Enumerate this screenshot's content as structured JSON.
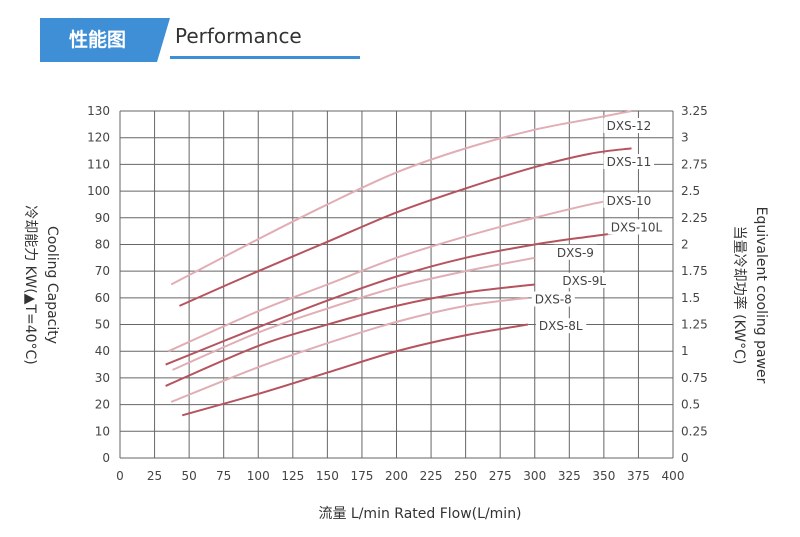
{
  "header": {
    "tag": "性能图",
    "title": "Performance",
    "accent_color": "#3e8fd6"
  },
  "chart_data": {
    "type": "line",
    "title": "",
    "xlabel": "流量 L/min  Rated Flow(L/min)",
    "ylabel": "冷却能力 KW(▲T=40°C)",
    "ylabel2": "Cooling Capacity",
    "y2label": "当量冷却功率 (KW°C)",
    "y2label2": "Equivalent cooling pawer",
    "xlim": [
      0,
      400
    ],
    "ylim": [
      0,
      130
    ],
    "y2lim": [
      0,
      3.25
    ],
    "xticks": [
      "0",
      "25",
      "50",
      "75",
      "100",
      "125",
      "150",
      "175",
      "200",
      "225",
      "250",
      "275",
      "300",
      "325",
      "350",
      "375",
      "400"
    ],
    "yticks": [
      "0",
      "10",
      "20",
      "30",
      "40",
      "50",
      "60",
      "70",
      "80",
      "90",
      "100",
      "110",
      "120",
      "130"
    ],
    "y2ticks": [
      "0",
      "0.25",
      "0.5",
      "0.75",
      "1",
      "1.25",
      "1.5",
      "1.75",
      "2",
      "2.25",
      "2.5",
      "2.75",
      "3",
      "3.25"
    ],
    "grid": true,
    "series": [
      {
        "name": "DXS-12",
        "color": "#e0aeb4",
        "x": [
          37,
          100,
          150,
          200,
          250,
          300,
          340,
          370
        ],
        "y": [
          65,
          82,
          95,
          107,
          116,
          123,
          127,
          130
        ]
      },
      {
        "name": "DXS-11",
        "color": "#b5535f",
        "x": [
          43,
          100,
          150,
          200,
          250,
          300,
          340,
          370
        ],
        "y": [
          57,
          70,
          81,
          92,
          101,
          109,
          114,
          116
        ]
      },
      {
        "name": "DXS-10",
        "color": "#e0aeb4",
        "x": [
          35,
          100,
          150,
          200,
          250,
          300,
          340,
          370
        ],
        "y": [
          40,
          55,
          65,
          75,
          83,
          90,
          95,
          98
        ]
      },
      {
        "name": "DXS-10L",
        "color": "#b5535f",
        "x": [
          33,
          100,
          150,
          200,
          250,
          300,
          340,
          370
        ],
        "y": [
          35,
          49,
          59,
          68,
          75,
          80,
          83,
          85
        ]
      },
      {
        "name": "DXS-9",
        "color": "#e0aeb4",
        "x": [
          38,
          100,
          150,
          200,
          250,
          300
        ],
        "y": [
          33,
          47,
          56,
          64,
          70,
          75
        ]
      },
      {
        "name": "DXS-9L",
        "color": "#b5535f",
        "x": [
          33,
          100,
          150,
          200,
          250,
          300
        ],
        "y": [
          27,
          42,
          50,
          57,
          62,
          65
        ]
      },
      {
        "name": "DXS-8",
        "color": "#e0aeb4",
        "x": [
          37,
          100,
          150,
          200,
          250,
          295
        ],
        "y": [
          21,
          34,
          43,
          51,
          57,
          60
        ]
      },
      {
        "name": "DXS-8L",
        "color": "#b5535f",
        "x": [
          45,
          100,
          150,
          200,
          250,
          295
        ],
        "y": [
          16,
          24,
          32,
          40,
          46,
          50
        ]
      }
    ],
    "labels": [
      {
        "text": "DXS-12",
        "x": 352,
        "y": 124
      },
      {
        "text": "DXS-11",
        "x": 352,
        "y": 110.5
      },
      {
        "text": "DXS-10",
        "x": 352,
        "y": 96
      },
      {
        "text": "DXS-10L",
        "x": 355,
        "y": 86
      },
      {
        "text": "DXS-9",
        "x": 316,
        "y": 76.5
      },
      {
        "text": "DXS-9L",
        "x": 320,
        "y": 66
      },
      {
        "text": "DXS-8",
        "x": 300,
        "y": 59
      },
      {
        "text": "DXS-8L",
        "x": 303,
        "y": 49
      }
    ]
  }
}
